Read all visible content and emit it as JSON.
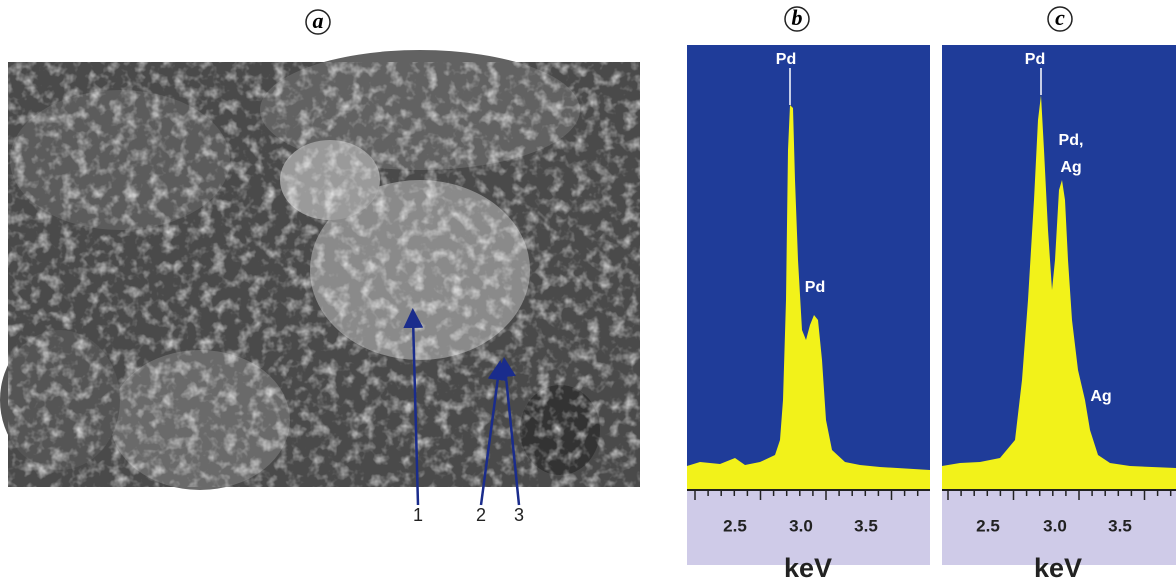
{
  "panel_a": {
    "label": "a",
    "arrow_labels": [
      "1",
      "2",
      "3"
    ]
  },
  "panel_b": {
    "label": "b",
    "peak_labels": [
      "Pd",
      "Pd"
    ],
    "ticks": [
      "2.5",
      "3.0",
      "3.5"
    ],
    "axis_label": "keV"
  },
  "panel_c": {
    "label": "c",
    "peak_labels": [
      "Pd",
      [
        "Pd,",
        "Ag"
      ],
      "Ag"
    ],
    "ticks": [
      "2.5",
      "3.0",
      "3.5"
    ],
    "axis_label": "keV"
  }
}
